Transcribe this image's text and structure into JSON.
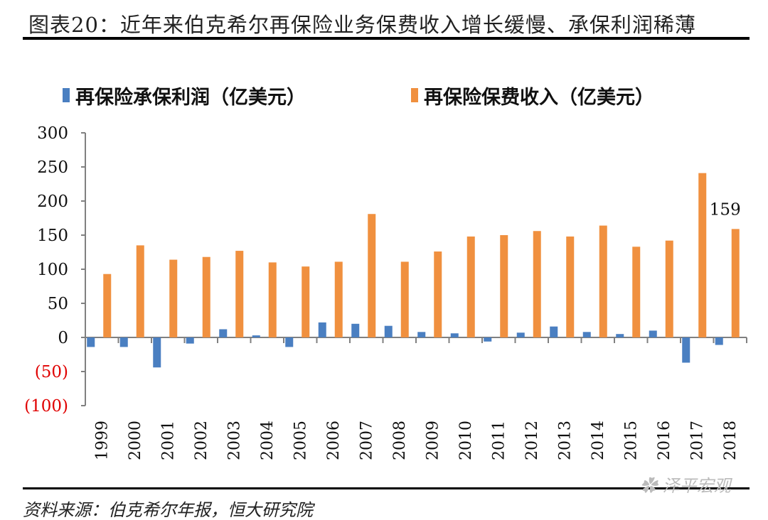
{
  "title": "图表20：近年来伯克希尔再保险业务保费收入增长缓慢、承保利润稀薄",
  "source": "资料来源：伯克希尔年报，恒大研究院",
  "watermark": "泽平宏观",
  "colors": {
    "profit": "#4a7fc1",
    "premium": "#f0903f",
    "negative_label": "#e00000"
  },
  "chart_data": {
    "type": "bar",
    "title": "",
    "xlabel": "",
    "ylabel": "",
    "ylim": [
      -100,
      300
    ],
    "yticks": [
      -100,
      -50,
      0,
      50,
      100,
      150,
      200,
      250,
      300
    ],
    "ytick_labels": [
      "(100)",
      "(50)",
      "0",
      "50",
      "100",
      "150",
      "200",
      "250",
      "300"
    ],
    "grid": false,
    "legend_position": "top",
    "categories": [
      "1999",
      "2000",
      "2001",
      "2002",
      "2003",
      "2004",
      "2005",
      "2006",
      "2007",
      "2008",
      "2009",
      "2010",
      "2011",
      "2012",
      "2013",
      "2014",
      "2015",
      "2016",
      "2017",
      "2018"
    ],
    "series": [
      {
        "name": "再保险承保利润（亿美元）",
        "values": [
          -14,
          -14,
          -44,
          -9,
          12,
          3,
          -14,
          22,
          20,
          17,
          8,
          6,
          -6,
          7,
          16,
          8,
          5,
          10,
          -37,
          -11
        ]
      },
      {
        "name": "再保险保费收入（亿美元）",
        "values": [
          93,
          135,
          114,
          118,
          127,
          110,
          104,
          111,
          181,
          111,
          126,
          148,
          150,
          156,
          148,
          164,
          133,
          142,
          241,
          159
        ]
      }
    ],
    "annotations": [
      {
        "category": "2018",
        "series": 1,
        "text": "159"
      }
    ]
  }
}
